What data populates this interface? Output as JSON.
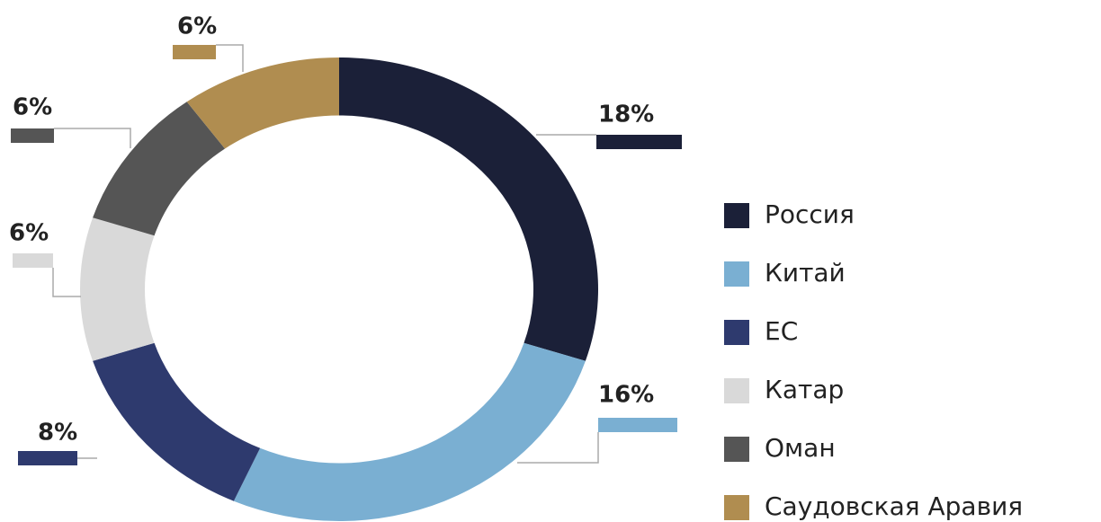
{
  "chart_data": {
    "type": "donut",
    "categories": [
      "Россия",
      "Китай",
      "ЕС",
      "Катар",
      "Оман",
      "Саудовская Аравия"
    ],
    "values": [
      18,
      16,
      8,
      6,
      6,
      6
    ],
    "value_labels": [
      "18%",
      "16%",
      "8%",
      "6%",
      "6%",
      "6%"
    ],
    "colors": [
      "#1b2038",
      "#7aafd2",
      "#2e3a6e",
      "#d9d9d9",
      "#555555",
      "#b08d50"
    ]
  }
}
